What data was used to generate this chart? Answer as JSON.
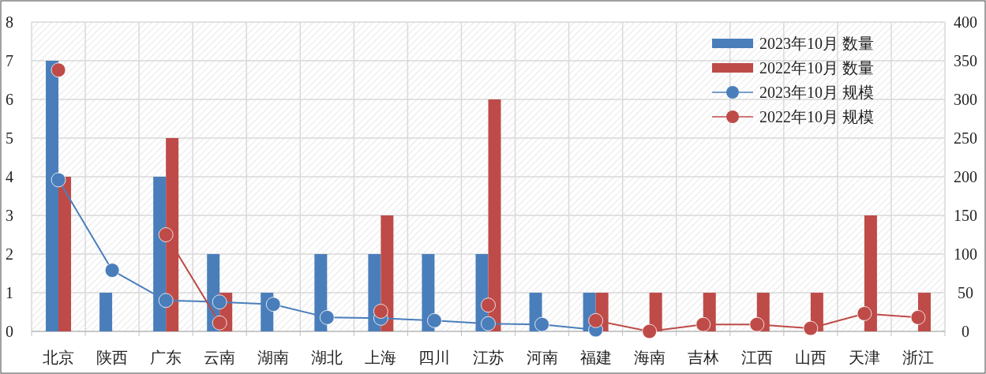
{
  "chart_data": {
    "type": "bar",
    "categories": [
      "北京",
      "陕西",
      "广东",
      "云南",
      "湖南",
      "湖北",
      "上海",
      "四川",
      "江苏",
      "河南",
      "福建",
      "海南",
      "吉林",
      "江西",
      "山西",
      "天津",
      "浙江"
    ],
    "series": [
      {
        "name": "2023年10月 数量",
        "color": "#4a7ebb",
        "values": [
          7,
          1,
          4,
          2,
          1,
          2,
          2,
          2,
          2,
          1,
          1,
          0,
          0,
          0,
          0,
          0,
          0
        ]
      },
      {
        "name": "2022年10月 数量",
        "color": "#be4b48",
        "values": [
          4,
          0,
          5,
          1,
          0,
          0,
          3,
          0,
          6,
          0,
          1,
          1,
          1,
          1,
          1,
          3,
          1
        ]
      },
      {
        "name": "2023年10月 规模",
        "type": "line",
        "axis": "y2",
        "color": "#4a7ebb",
        "values": [
          196,
          79,
          40,
          38,
          35,
          18,
          17,
          14,
          10,
          9,
          2,
          null,
          null,
          null,
          null,
          null,
          null
        ]
      },
      {
        "name": "2022年10月 规模",
        "type": "line",
        "axis": "y2",
        "color": "#be4b48",
        "values": [
          338,
          null,
          125,
          11,
          null,
          null,
          26,
          null,
          34,
          null,
          14,
          0,
          9,
          9,
          4,
          23,
          18
        ]
      }
    ],
    "ylim": [
      0,
      8
    ],
    "yticks": [
      0,
      1,
      2,
      3,
      4,
      5,
      6,
      7,
      8
    ],
    "y2lim": [
      0,
      400
    ],
    "y2ticks": [
      0,
      50,
      100,
      150,
      200,
      250,
      300,
      350,
      400
    ],
    "grid": true,
    "legend": "top right",
    "marker": "circle"
  }
}
